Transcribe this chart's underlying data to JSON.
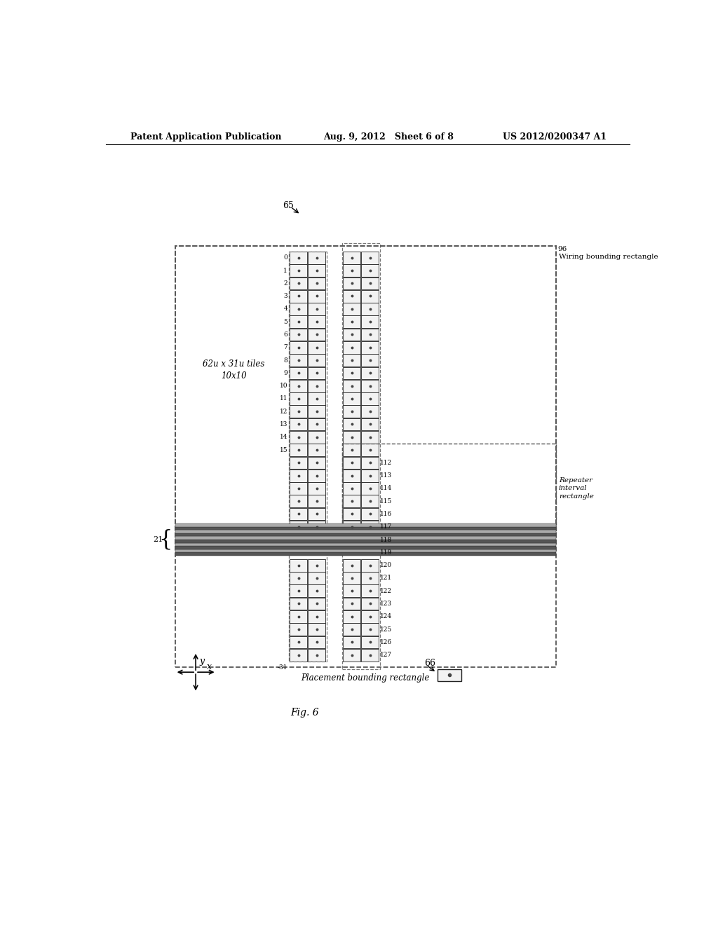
{
  "title_left": "Patent Application Publication",
  "title_mid": "Aug. 9, 2012   Sheet 6 of 8",
  "title_right": "US 2012/0200347 A1",
  "fig_label": "Fig. 6",
  "label_65": "65",
  "label_66": "66",
  "label_21": "21",
  "label_96": "96",
  "wiring_label": "Wiring bounding rectangle",
  "placement_label": "Placement bounding rectangle",
  "repeater_label": "Repeater\ninterval\nrectangle",
  "tiles_label": "62u x 31u tiles\n10x10",
  "row_labels_left": [
    "0",
    "1",
    "2",
    "3",
    "4",
    "5",
    "6",
    "7",
    "8",
    "9",
    "10",
    "11",
    "12",
    "13",
    "14",
    "15"
  ],
  "row_labels_right_top": [
    "112",
    "113",
    "114",
    "115",
    "116",
    "117"
  ],
  "row_labels_right_bus": [
    "118",
    "119"
  ],
  "row_labels_right_bot": [
    "120",
    "121",
    "122",
    "123",
    "124",
    "125",
    "126",
    "127"
  ],
  "row_label_minus31": "-31",
  "bg_color": "#ffffff",
  "dashed_color": "#555555",
  "tile_fill_light": "#f2f2f2",
  "tile_fill_mid": "#e0e0e0",
  "tile_border": "#222222",
  "dot_color": "#444444",
  "bus_dark": "#555555",
  "bus_light": "#aaaaaa",
  "inner_dash_color": "#777777"
}
